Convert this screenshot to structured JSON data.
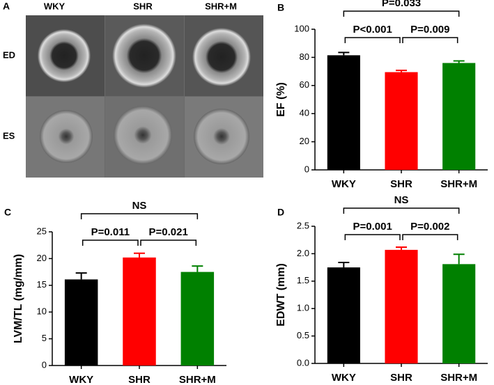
{
  "image_panel": {
    "label": "A",
    "columns": [
      "WKY",
      "SHR",
      "SHR+M"
    ],
    "rows": [
      "ED",
      "ES"
    ]
  },
  "chart_data": [
    {
      "type": "bar",
      "panel_label": "B",
      "ylabel": "EF (%)",
      "categories": [
        "WKY",
        "SHR",
        "SHR+M"
      ],
      "values": [
        81.5,
        69.5,
        76
      ],
      "errors": [
        2,
        1.2,
        1.5
      ],
      "colors": [
        "#000000",
        "#ff0000",
        "#008000"
      ],
      "ylim": [
        0,
        100
      ],
      "yticks": [
        0,
        20,
        40,
        60,
        80,
        100
      ],
      "comparisons": [
        {
          "from": 0,
          "to": 1,
          "label": "P<0.001"
        },
        {
          "from": 1,
          "to": 2,
          "label": "P=0.009"
        },
        {
          "from": 0,
          "to": 2,
          "label": "P=0.033"
        }
      ]
    },
    {
      "type": "bar",
      "panel_label": "C",
      "ylabel": "LVM/TL (mg/mm)",
      "categories": [
        "WKY",
        "SHR",
        "SHR+M"
      ],
      "values": [
        16.1,
        20.2,
        17.5
      ],
      "errors": [
        1.2,
        0.8,
        1.1
      ],
      "colors": [
        "#000000",
        "#ff0000",
        "#008000"
      ],
      "ylim": [
        0,
        25
      ],
      "yticks": [
        0,
        5,
        10,
        15,
        20,
        25
      ],
      "comparisons": [
        {
          "from": 0,
          "to": 1,
          "label": "P=0.011"
        },
        {
          "from": 1,
          "to": 2,
          "label": "P=0.021"
        },
        {
          "from": 0,
          "to": 2,
          "label": "NS"
        }
      ]
    },
    {
      "type": "bar",
      "panel_label": "D",
      "ylabel": "EDWT (mm)",
      "categories": [
        "WKY",
        "SHR",
        "SHR+M"
      ],
      "values": [
        1.75,
        2.07,
        1.81
      ],
      "errors": [
        0.09,
        0.05,
        0.18
      ],
      "colors": [
        "#000000",
        "#ff0000",
        "#008000"
      ],
      "ylim": [
        0,
        2.5
      ],
      "yticks": [
        {
          "value": 0,
          "label": "0.0"
        },
        0.5,
        {
          "value": 1,
          "label": "1.0"
        },
        1.5,
        {
          "value": 2,
          "label": "2.0"
        },
        2.5
      ],
      "comparisons": [
        {
          "from": 0,
          "to": 1,
          "label": "P=0.001"
        },
        {
          "from": 1,
          "to": 2,
          "label": "P=0.002"
        },
        {
          "from": 0,
          "to": 2,
          "label": "NS"
        }
      ]
    }
  ]
}
